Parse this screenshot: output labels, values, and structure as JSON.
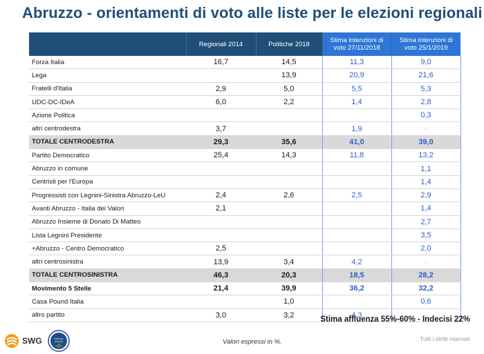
{
  "title": "Abruzzo - orientamenti di voto alle liste per le elezioni regionali",
  "table": {
    "columns": [
      "",
      "Regionali 2014",
      "Politiche 2018",
      "Stima intenzioni di voto 27/11/2018",
      "Stima intenzioni di voto 25/1/2019"
    ],
    "rows": [
      {
        "label": "Forza Italia",
        "values": [
          "16,7",
          "14,5",
          "11,3",
          "9,0"
        ],
        "style": ""
      },
      {
        "label": "Lega",
        "values": [
          "",
          "13,9",
          "20,9",
          "21,6"
        ],
        "style": ""
      },
      {
        "label": "Fratelli d'Italia",
        "values": [
          "2,9",
          "5,0",
          "5,5",
          "5,3"
        ],
        "style": ""
      },
      {
        "label": "UDC-DC-IDeA",
        "values": [
          "6,0",
          "2,2",
          "1,4",
          "2,8"
        ],
        "style": ""
      },
      {
        "label": "Azione Politica",
        "values": [
          "",
          "",
          "",
          "0,3"
        ],
        "style": ""
      },
      {
        "label": "altri centrodestra",
        "values": [
          "3,7",
          "",
          "1,9",
          "-"
        ],
        "style": ""
      },
      {
        "label": "TOTALE CENTRODESTRA",
        "values": [
          "29,3",
          "35,6",
          "41,0",
          "39,0"
        ],
        "style": "total"
      },
      {
        "label": "Partito Democratico",
        "values": [
          "25,4",
          "14,3",
          "11,8",
          "13,2"
        ],
        "style": ""
      },
      {
        "label": "Abruzzo in comune",
        "values": [
          "",
          "",
          "",
          "1,1"
        ],
        "style": ""
      },
      {
        "label": "Centristi per l'Europa",
        "values": [
          "",
          "",
          "",
          "1,4"
        ],
        "style": ""
      },
      {
        "label": "Progressisti con Legnini-Sinistra Abruzzo-LeU",
        "values": [
          "2,4",
          "2,6",
          "2,5",
          "2,9"
        ],
        "style": ""
      },
      {
        "label": "Avanti Abruzzo - Italia dei Valori",
        "values": [
          "2,1",
          "",
          "",
          "1,4"
        ],
        "style": ""
      },
      {
        "label": "Abruzzo Insieme di Donato Di Matteo",
        "values": [
          "",
          "",
          "",
          "2,7"
        ],
        "style": ""
      },
      {
        "label": "Lista Legnini Presidente",
        "values": [
          "",
          "",
          "",
          "3,5"
        ],
        "style": ""
      },
      {
        "label": "+Abruzzo - Centro Democratico",
        "values": [
          "2,5",
          "",
          "",
          "2,0"
        ],
        "style": ""
      },
      {
        "label": "altri centrosinistra",
        "values": [
          "13,9",
          "3,4",
          "4,2",
          "-"
        ],
        "style": ""
      },
      {
        "label": "TOTALE CENTROSINISTRA",
        "values": [
          "46,3",
          "20,3",
          "18,5",
          "28,2"
        ],
        "style": "total"
      },
      {
        "label": "Movimento 5 Stelle",
        "values": [
          "21,4",
          "39,9",
          "36,2",
          "32,2"
        ],
        "style": "bold"
      },
      {
        "label": "Casa Pound Italia",
        "values": [
          "",
          "1,0",
          "",
          "0,6"
        ],
        "style": ""
      },
      {
        "label": "altro partito",
        "values": [
          "3,0",
          "3,2",
          "4,3",
          "-"
        ],
        "style": ""
      }
    ]
  },
  "affluenza": "Stima affluenza 55%-60% - Indecisi 22%",
  "footer": {
    "swg": "SWG",
    "fdi_logo_text": "FRATELLI D'ITALIA",
    "valori": "Valori espressi in %.",
    "diritti": "Tutti i diritti riservati"
  },
  "colors": {
    "title": "#1f4e79",
    "header": "#1f4e79",
    "stima_header": "#2e75d6",
    "stima_values": "#2e5fc8",
    "total_row": "#d9d9d9"
  }
}
